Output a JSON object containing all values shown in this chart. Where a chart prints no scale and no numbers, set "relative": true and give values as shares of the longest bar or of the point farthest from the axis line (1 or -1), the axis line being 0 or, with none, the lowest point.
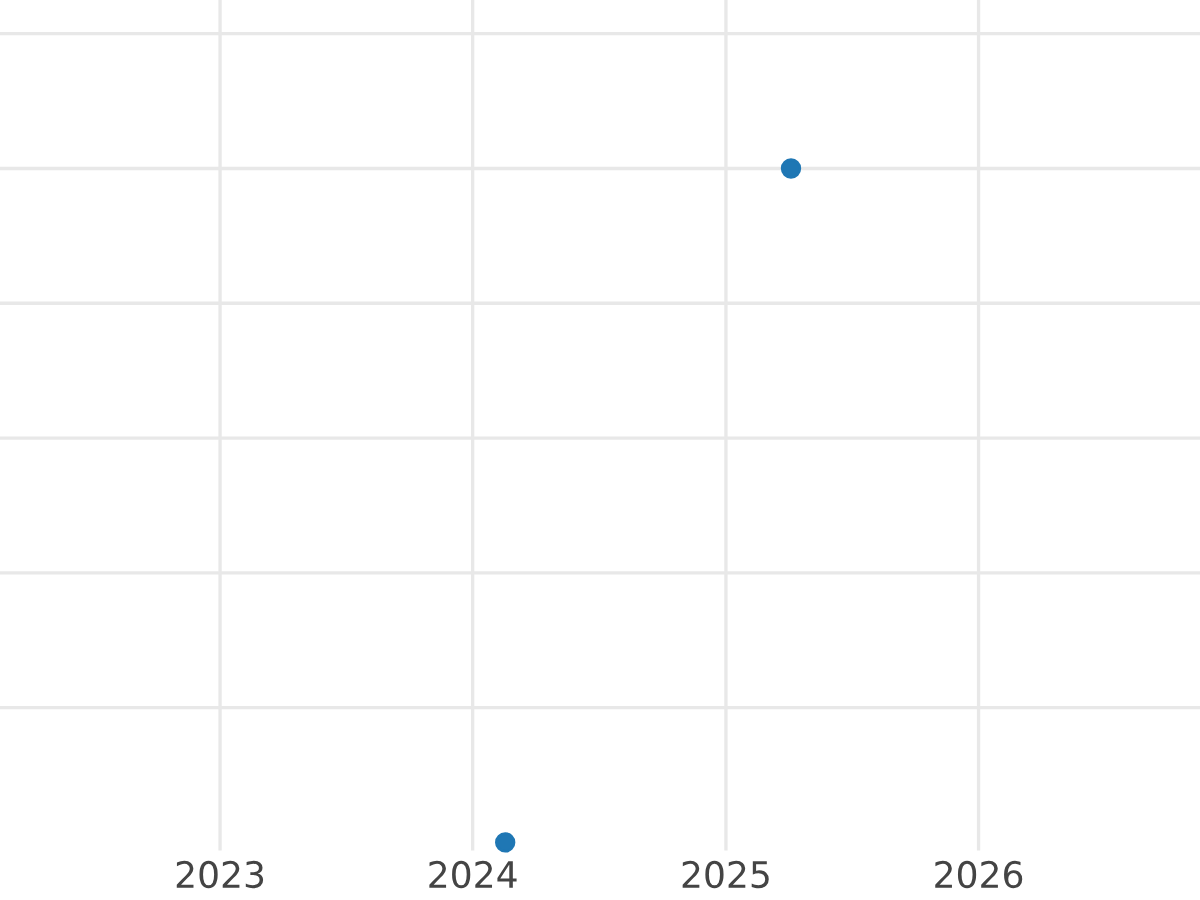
{
  "chart_data": {
    "type": "scatter",
    "relative": true,
    "x": [
      "2024-02-17",
      "2025-04-05"
    ],
    "series": [
      {
        "color": "#1f77b4",
        "values": [
          0,
          1
        ]
      }
    ],
    "xlim": [
      "2022-02-17",
      "2026-11-17"
    ],
    "xticks": [
      {
        "value": "2023-01-01",
        "label": "2023"
      },
      {
        "value": "2024-01-01",
        "label": "2024"
      },
      {
        "value": "2025-01-01",
        "label": "2025"
      },
      {
        "value": "2026-01-01",
        "label": "2026"
      }
    ],
    "tick_labels": "x",
    "grid": true,
    "marker": "circle"
  }
}
